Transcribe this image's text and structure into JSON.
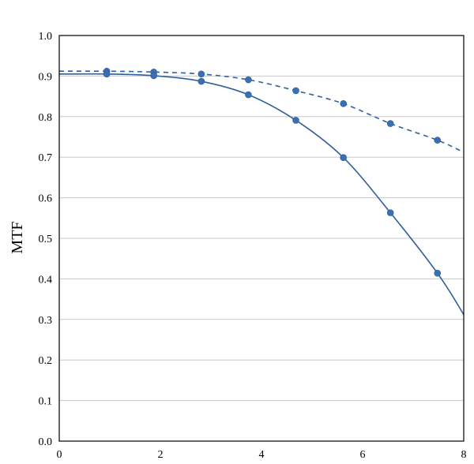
{
  "chart_data": {
    "type": "line",
    "title": "",
    "xlabel": "",
    "ylabel": "MTF",
    "xlim": [
      0,
      8
    ],
    "ylim": [
      0,
      1.0
    ],
    "x_ticks": [
      "0",
      "2",
      "4",
      "6",
      "8"
    ],
    "y_ticks": [
      "0.0",
      "0.1",
      "0.2",
      "0.3",
      "0.4",
      "0.5",
      "0.6",
      "0.7",
      "0.8",
      "0.9",
      "1.0"
    ],
    "grid": "horizontal",
    "legend": "none",
    "series": [
      {
        "line_style": "dashed",
        "color": "#2e5f9e",
        "marker_color": "#3a70b2",
        "points": [
          {
            "x": 0.94,
            "y": 0.912
          },
          {
            "x": 1.87,
            "y": 0.91
          },
          {
            "x": 2.81,
            "y": 0.905
          },
          {
            "x": 3.74,
            "y": 0.891
          },
          {
            "x": 4.68,
            "y": 0.864
          },
          {
            "x": 5.62,
            "y": 0.832
          },
          {
            "x": 6.55,
            "y": 0.783
          },
          {
            "x": 7.48,
            "y": 0.742
          }
        ],
        "curve": [
          {
            "x": 0,
            "y": 0.912
          },
          {
            "x": 0.94,
            "y": 0.912
          },
          {
            "x": 1.87,
            "y": 0.91
          },
          {
            "x": 2.81,
            "y": 0.905
          },
          {
            "x": 3.74,
            "y": 0.891
          },
          {
            "x": 4.68,
            "y": 0.864
          },
          {
            "x": 5.62,
            "y": 0.832
          },
          {
            "x": 6.55,
            "y": 0.783
          },
          {
            "x": 7.48,
            "y": 0.742
          },
          {
            "x": 8.0,
            "y": 0.712
          }
        ]
      },
      {
        "line_style": "solid",
        "color": "#2e5f9e",
        "marker_color": "#3a70b2",
        "points": [
          {
            "x": 0.94,
            "y": 0.905
          },
          {
            "x": 1.87,
            "y": 0.901
          },
          {
            "x": 2.81,
            "y": 0.887
          },
          {
            "x": 3.74,
            "y": 0.854
          },
          {
            "x": 4.68,
            "y": 0.791
          },
          {
            "x": 5.62,
            "y": 0.699
          },
          {
            "x": 6.55,
            "y": 0.563
          },
          {
            "x": 7.48,
            "y": 0.414
          }
        ],
        "curve": [
          {
            "x": 0,
            "y": 0.905
          },
          {
            "x": 0.94,
            "y": 0.905
          },
          {
            "x": 1.87,
            "y": 0.901
          },
          {
            "x": 2.81,
            "y": 0.887
          },
          {
            "x": 3.74,
            "y": 0.854
          },
          {
            "x": 4.68,
            "y": 0.791
          },
          {
            "x": 5.62,
            "y": 0.699
          },
          {
            "x": 6.55,
            "y": 0.563
          },
          {
            "x": 7.48,
            "y": 0.414
          },
          {
            "x": 8.0,
            "y": 0.312
          }
        ]
      }
    ]
  }
}
